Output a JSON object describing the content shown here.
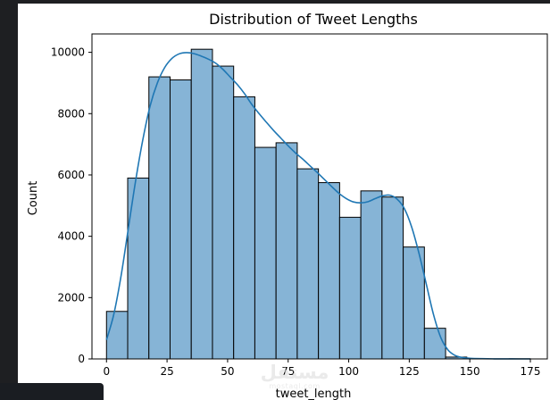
{
  "chart_data": {
    "type": "bar",
    "title": "Distribution of Tweet Lengths",
    "xlabel": "tweet_length",
    "ylabel": "Count",
    "xlim": [
      -6,
      182
    ],
    "ylim": [
      0,
      10600
    ],
    "xticks": [
      0,
      25,
      50,
      75,
      100,
      125,
      150,
      175
    ],
    "yticks": [
      0,
      2000,
      4000,
      6000,
      8000,
      10000
    ],
    "bin_edges": [
      0,
      8.75,
      17.5,
      26.25,
      35,
      43.75,
      52.5,
      61.25,
      70,
      78.75,
      87.5,
      96.25,
      105,
      113.75,
      122.5,
      131.25,
      140,
      148.75,
      157.5,
      166.25,
      175
    ],
    "values": [
      1550,
      5900,
      9200,
      9100,
      10100,
      9550,
      8550,
      6900,
      7050,
      6200,
      5750,
      4620,
      5480,
      5280,
      3650,
      1000,
      60,
      10,
      0,
      5
    ],
    "kde": {
      "x": [
        0,
        3,
        6,
        9,
        12,
        15,
        18,
        21,
        24,
        27,
        30,
        33,
        36,
        39,
        42,
        45,
        48,
        51,
        54,
        57,
        60,
        63,
        66,
        69,
        72,
        75,
        78,
        81,
        84,
        87,
        90,
        93,
        96,
        99,
        102,
        105,
        108,
        111,
        114,
        117,
        120,
        123,
        126,
        129,
        132,
        135,
        138,
        141,
        144,
        147,
        150,
        155,
        160,
        165,
        170,
        175
      ],
      "y": [
        620,
        1450,
        2700,
        4250,
        5800,
        7150,
        8250,
        9000,
        9500,
        9800,
        9950,
        9990,
        9960,
        9880,
        9780,
        9650,
        9450,
        9200,
        8950,
        8650,
        8300,
        8000,
        7720,
        7450,
        7200,
        6950,
        6720,
        6520,
        6300,
        6080,
        5850,
        5620,
        5400,
        5230,
        5120,
        5090,
        5130,
        5230,
        5320,
        5340,
        5210,
        4900,
        4300,
        3450,
        2450,
        1450,
        700,
        290,
        110,
        45,
        20,
        8,
        3,
        1,
        0,
        0
      ]
    },
    "colors": {
      "bar_fill": "#86b4d6",
      "bar_edge": "#000000",
      "kde_line": "#1f77b4"
    },
    "grid": false,
    "legend": "none"
  },
  "watermark": {
    "main": "مستقل",
    "sub": "mostaql.com"
  }
}
